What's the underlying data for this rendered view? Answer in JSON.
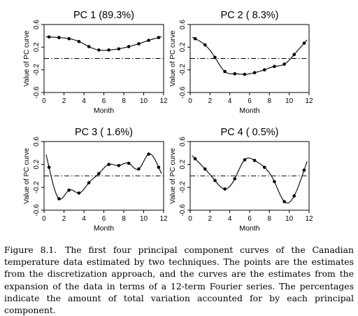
{
  "figure": {
    "caption_label": "Figure 8.1.",
    "caption_text": "The first four principal component curves of the Canadian temperature data estimated by two techniques. The points are the estimates from the discretization approach, and the curves are the estimates from the expansion of the data in terms of a 12-term Fourier series. The percentages indicate the amount of total variation accounted for by each principal component."
  },
  "chart_data": [
    {
      "type": "line",
      "title": "PC 1 (89.3%)",
      "xlabel": "Month",
      "ylabel": "Value of PC curve",
      "xlim": [
        0,
        12
      ],
      "ylim": [
        -0.6,
        0.6
      ],
      "xticks": [
        "0",
        "2",
        "4",
        "6",
        "8",
        "10",
        "12"
      ],
      "yticks": [
        "-0.6",
        "-0.2",
        "0.2",
        "0.6"
      ],
      "reference_line": 0,
      "series": [
        {
          "points_x": [
            0.5,
            1.5,
            2.5,
            3.5,
            4.5,
            5.5,
            6.5,
            7.5,
            8.5,
            9.5,
            10.5,
            11.5
          ],
          "points_y": [
            0.38,
            0.37,
            0.35,
            0.3,
            0.21,
            0.15,
            0.15,
            0.17,
            0.21,
            0.26,
            0.32,
            0.37
          ]
        }
      ]
    },
    {
      "type": "line",
      "title": "PC 2 ( 8.3%)",
      "xlabel": "Month",
      "ylabel": "Value of PC curve",
      "xlim": [
        0,
        12
      ],
      "ylim": [
        -0.6,
        0.6
      ],
      "xticks": [
        "0",
        "2",
        "4",
        "6",
        "8",
        "10",
        "12"
      ],
      "yticks": [
        "-0.6",
        "-0.2",
        "0.2",
        "0.6"
      ],
      "reference_line": 0,
      "series": [
        {
          "points_x": [
            0.5,
            1.5,
            2.5,
            3.5,
            4.5,
            5.5,
            6.5,
            7.5,
            8.5,
            9.5,
            10.5,
            11.5
          ],
          "points_y": [
            0.35,
            0.24,
            0.02,
            -0.23,
            -0.27,
            -0.28,
            -0.25,
            -0.2,
            -0.14,
            -0.1,
            0.07,
            0.27
          ]
        }
      ]
    },
    {
      "type": "line",
      "title": "PC 3 ( 1.6%)",
      "xlabel": "Month",
      "ylabel": "Value of PC curve",
      "xlim": [
        0,
        12
      ],
      "ylim": [
        -0.6,
        0.6
      ],
      "xticks": [
        "0",
        "2",
        "4",
        "6",
        "8",
        "10",
        "12"
      ],
      "yticks": [
        "-0.6",
        "-0.2",
        "0.2",
        "0.6"
      ],
      "reference_line": 0,
      "series": [
        {
          "points_x": [
            0.5,
            1.5,
            2.5,
            3.5,
            4.5,
            5.5,
            6.5,
            7.5,
            8.5,
            9.5,
            10.5,
            11.5
          ],
          "points_y": [
            0.15,
            -0.4,
            -0.25,
            -0.3,
            -0.12,
            0.04,
            0.2,
            0.18,
            0.22,
            0.12,
            0.38,
            0.15
          ]
        }
      ]
    },
    {
      "type": "line",
      "title": "PC 4 ( 0.5%)",
      "xlabel": "Month",
      "ylabel": "Value of PC curve",
      "xlim": [
        0,
        12
      ],
      "ylim": [
        -0.6,
        0.6
      ],
      "xticks": [
        "0",
        "2",
        "4",
        "6",
        "8",
        "10",
        "12"
      ],
      "yticks": [
        "-0.6",
        "-0.2",
        "0.2",
        "0.6"
      ],
      "reference_line": 0,
      "series": [
        {
          "points_x": [
            0.5,
            1.5,
            2.5,
            3.5,
            4.5,
            5.5,
            6.5,
            7.5,
            8.5,
            9.5,
            10.5,
            11.5
          ],
          "points_y": [
            0.3,
            0.12,
            -0.08,
            -0.23,
            -0.05,
            0.28,
            0.27,
            0.15,
            -0.1,
            -0.45,
            -0.35,
            0.1
          ]
        }
      ]
    }
  ]
}
